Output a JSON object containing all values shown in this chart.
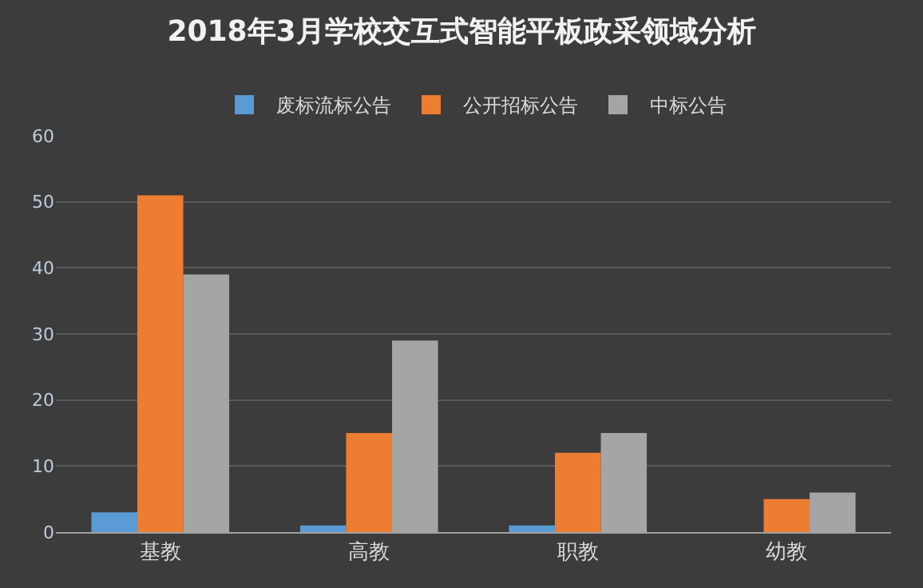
{
  "chart_data": {
    "type": "bar",
    "title": "2018年3月学校交互式智能平板政采领域分析",
    "categories": [
      "基教",
      "高教",
      "职教",
      "幼教"
    ],
    "series": [
      {
        "name": "废标流标公告",
        "color": "#5b9bd5",
        "values": [
          3,
          1,
          1,
          0
        ]
      },
      {
        "name": "公开招标公告",
        "color": "#ed7d31",
        "values": [
          51,
          15,
          12,
          5
        ]
      },
      {
        "name": "中标公告",
        "color": "#a5a5a5",
        "values": [
          39,
          29,
          15,
          6
        ]
      }
    ],
    "ylim": [
      0,
      60
    ],
    "yticks": [
      0,
      10,
      20,
      30,
      40,
      50,
      60
    ],
    "grid": "y",
    "legend": "top"
  }
}
